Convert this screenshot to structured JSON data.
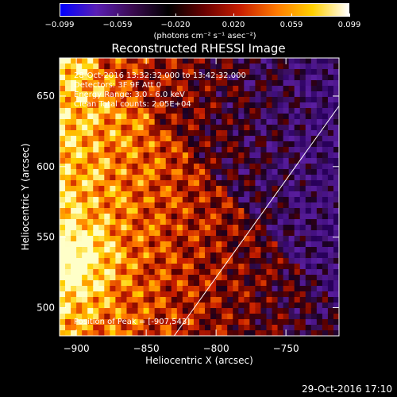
{
  "colorbar": {
    "ticks": [
      "-0.099",
      "-0.059",
      "-0.020",
      "0.020",
      "0.059",
      "0.099"
    ],
    "units": "(photons cm⁻² s⁻¹ asec⁻²)",
    "colors": [
      "#0000ff",
      "#5a1fb4",
      "#3a0a50",
      "#000000",
      "#6a0000",
      "#c81e00",
      "#ff7a00",
      "#ffd000",
      "#ffffff"
    ]
  },
  "chart_data": {
    "type": "heatmap",
    "title": "Reconstructed RHESSI Image",
    "xlabel": "Heliocentric X (arcsec)",
    "ylabel": "Heliocentric Y (arcsec)",
    "xlim": [
      -912,
      -712
    ],
    "ylim": [
      480,
      677
    ],
    "x_ticks": [
      -900,
      -850,
      -800,
      -750
    ],
    "y_ticks": [
      500,
      550,
      600,
      650
    ],
    "x_tick_labels": [
      "−900",
      "−850",
      "−800",
      "−750"
    ],
    "y_tick_labels": [
      "500",
      "550",
      "600",
      "650"
    ],
    "annotations": [
      "28-Oct-2016 13:32:32.000 to 13:42:32.000",
      "Detectors: 3F 9F  Att 0",
      "Energy Range: 3.0 - 6.0 keV",
      "Clean    Total counts: 2.05E+04"
    ],
    "peak_label": "Position of Peak = [-907,543]",
    "limb_line": [
      [
        -830,
        480
      ],
      [
        -712,
        643
      ]
    ],
    "grid": false
  },
  "footer": {
    "date": "29-Oct-2016 17:10"
  }
}
